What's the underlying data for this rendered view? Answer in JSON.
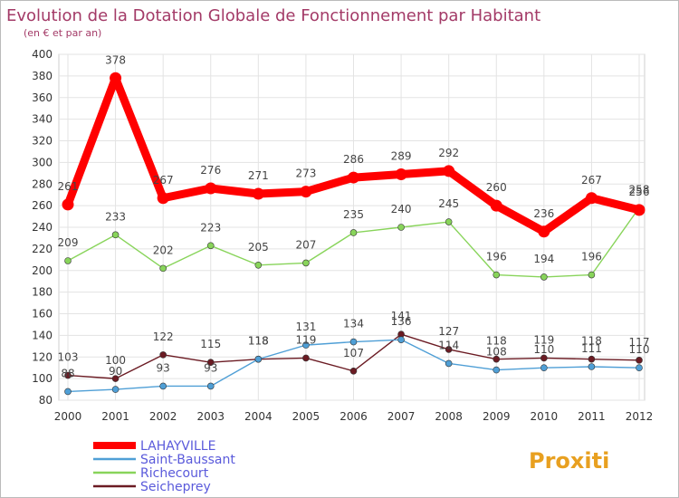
{
  "chart_data": {
    "type": "line",
    "title": "Evolution de la Dotation Globale de Fonctionnement par Habitant",
    "subtitle": "(en € et par an)",
    "x": [
      "2000",
      "2001",
      "2002",
      "2003",
      "2004",
      "2005",
      "2006",
      "2007",
      "2008",
      "2009",
      "2010",
      "2011",
      "2012"
    ],
    "ylim": [
      80,
      400
    ],
    "yticks": [
      80,
      100,
      120,
      140,
      160,
      180,
      200,
      220,
      240,
      260,
      280,
      300,
      320,
      340,
      360,
      380,
      400
    ],
    "grid": true,
    "legend_position": "bottom-left",
    "series": [
      {
        "name": "LAHAYVILLE",
        "color": "#ff0000",
        "values": [
          261,
          378,
          267,
          276,
          271,
          273,
          286,
          289,
          292,
          260,
          236,
          267,
          256
        ]
      },
      {
        "name": "Saint-Baussant",
        "color": "#4f9fd6",
        "values": [
          88,
          90,
          93,
          93,
          118,
          131,
          134,
          136,
          114,
          108,
          110,
          111,
          110
        ]
      },
      {
        "name": "Richecourt",
        "color": "#88d45a",
        "values": [
          209,
          233,
          202,
          223,
          205,
          207,
          235,
          240,
          245,
          196,
          194,
          196,
          258
        ]
      },
      {
        "name": "Seicheprey",
        "color": "#6b1b23",
        "values": [
          103,
          100,
          122,
          115,
          118,
          119,
          107,
          141,
          127,
          118,
          119,
          118,
          117
        ]
      }
    ],
    "data_labels": {
      "LAHAYVILLE": [
        "261",
        "378",
        "267",
        "276",
        "271",
        "273",
        "286",
        "289",
        "292",
        "260",
        "236",
        "267",
        "256"
      ],
      "Saint-Baussant": [
        "88",
        "90",
        "93",
        "93",
        "118",
        "131",
        "134",
        "136",
        "114",
        "108",
        "110",
        "111",
        "110"
      ],
      "Richecourt": [
        "209",
        "233",
        "202",
        "223",
        "205",
        "207",
        "235",
        "240",
        "245",
        "196",
        "194",
        "196",
        "258"
      ],
      "Seicheprey": [
        "103",
        "100",
        "122",
        "115",
        "118",
        "119",
        "107",
        "141",
        "127",
        "118",
        "119",
        "118",
        "117"
      ]
    }
  },
  "logo": {
    "text": "Proxiti"
  }
}
